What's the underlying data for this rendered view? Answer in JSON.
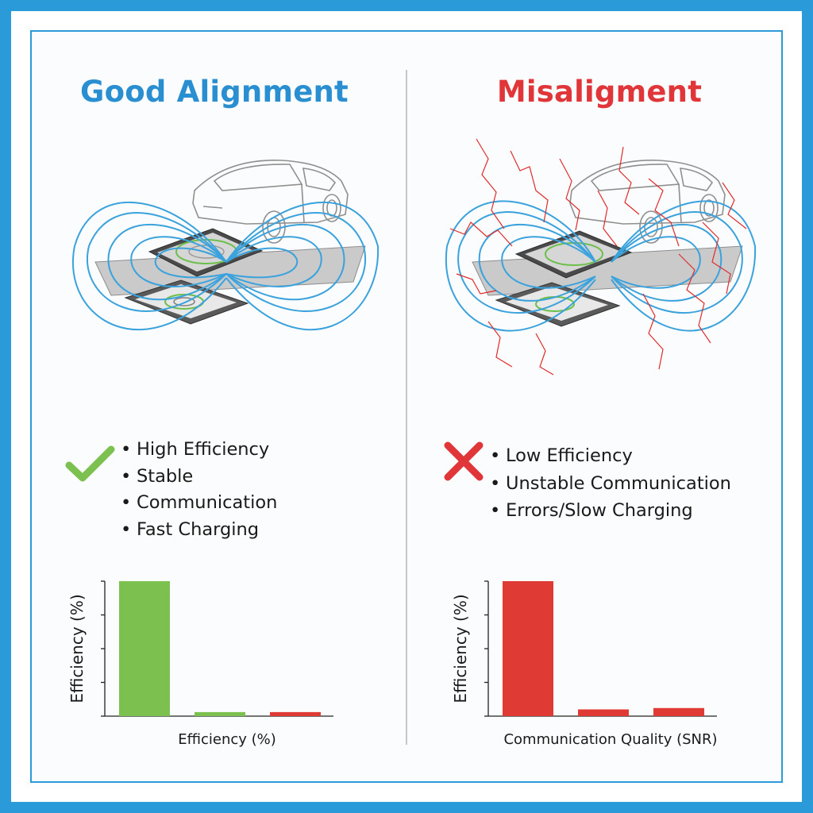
{
  "colors": {
    "frame": "#2a9ad8",
    "good_title": "#2a8fd0",
    "bad_title": "#e0363a",
    "field_line": "#3aa2dc",
    "noise": "#e02b2b",
    "green": "#7cc04f",
    "red": "#e03a35",
    "axis": "#222222"
  },
  "left": {
    "title": "Good Alignment",
    "status_icon": "check-icon",
    "bullets": [
      "High Efficiency",
      "Stable",
      "Communication",
      "Fast Charging"
    ],
    "illustration_icon": "car-wireless-charging-pad-icon"
  },
  "right": {
    "title": "Misaligment",
    "status_icon": "x-icon",
    "bullets": [
      "Low Efficiency",
      "Unstable Communication",
      "Errors/Slow Charging"
    ],
    "illustration_icon": "car-wireless-charging-pad-interference-icon"
  },
  "chart_data": [
    {
      "type": "bar",
      "title": "",
      "xlabel": "Efficiency (%)",
      "ylabel": "Efficiency (%)",
      "ylim": [
        0,
        100
      ],
      "y_ticks": 4,
      "grid": false,
      "values": [
        100,
        3,
        3
      ],
      "colors": [
        "#7cc04f",
        "#7cc04f",
        "#e03a35"
      ]
    },
    {
      "type": "bar",
      "title": "",
      "xlabel": "Communication Quality (SNR)",
      "ylabel": "Efficiency (%)",
      "ylim": [
        0,
        100
      ],
      "y_ticks": 4,
      "grid": false,
      "values": [
        100,
        5,
        6
      ],
      "colors": [
        "#e03a35",
        "#e03a35",
        "#e03a35"
      ]
    }
  ]
}
